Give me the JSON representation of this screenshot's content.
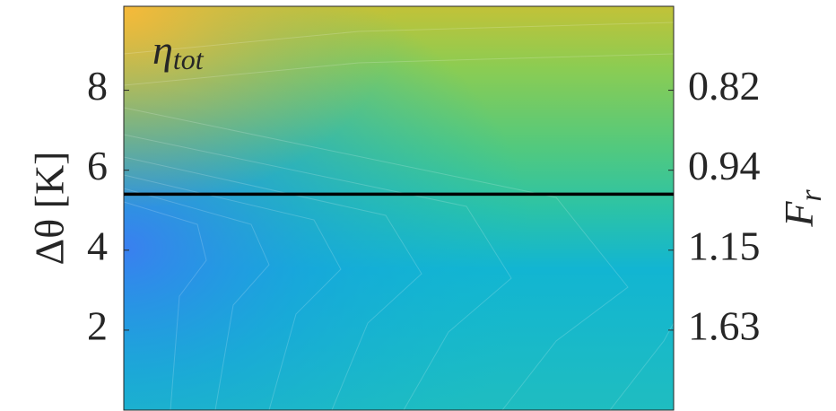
{
  "chart_data": {
    "type": "contour",
    "ylabel": "Δθ [K]",
    "y2label": {
      "symbol": "F",
      "subscript": "r"
    },
    "annotation": {
      "symbol": "η",
      "subscript": "tot"
    },
    "ylim": [
      0,
      10.1
    ],
    "yticks": [
      2,
      4,
      6,
      8
    ],
    "y2ticks": [
      1.63,
      1.15,
      0.94,
      0.82
    ],
    "hline": 5.4,
    "hline_color": "#000000"
  }
}
